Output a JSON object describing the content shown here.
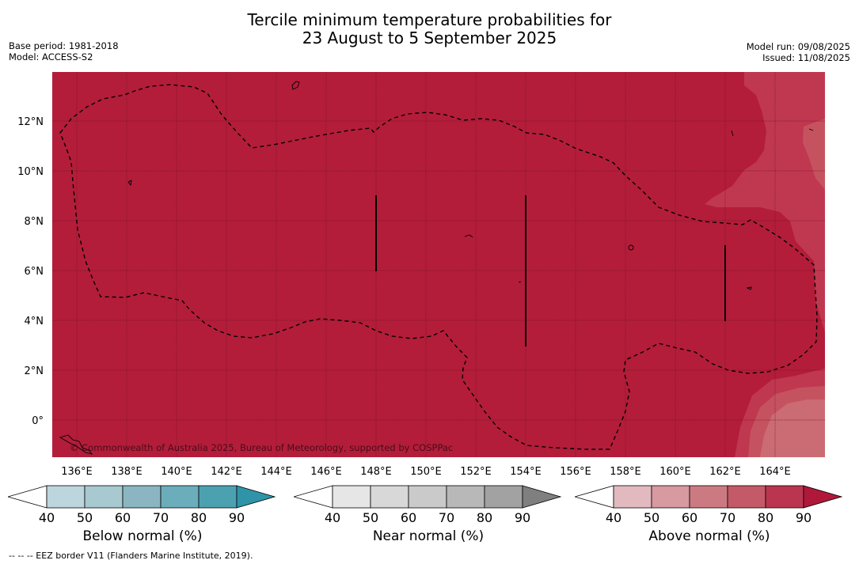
{
  "title": {
    "line1": "Tercile minimum temperature probabilities for",
    "line2": "23 August to 5 September 2025"
  },
  "meta_left": {
    "base_period": "Base period: 1981-2018",
    "model": "Model: ACCESS-S2"
  },
  "meta_right": {
    "model_run": "Model run: 09/08/2025",
    "issued": "Issued: 11/08/2025"
  },
  "map": {
    "lat_labels": [
      "12°N",
      "10°N",
      "8°N",
      "6°N",
      "4°N",
      "2°N",
      "0°"
    ],
    "lon_labels": [
      "136°E",
      "138°E",
      "140°E",
      "142°E",
      "144°E",
      "146°E",
      "148°E",
      "150°E",
      "152°E",
      "154°E",
      "156°E",
      "158°E",
      "160°E",
      "162°E",
      "164°E"
    ],
    "copyright": "© Commonwealth of Australia 2025, Bureau of Meteorology, supported by COSPPac",
    "colors": {
      "dominant": "#b31d3a",
      "above_80": "#bf3850",
      "above_70": "#c5535f",
      "above_60": "#cb6b73"
    }
  },
  "colorbars": [
    {
      "caption": "Below normal (%)",
      "ticks": [
        "40",
        "50",
        "60",
        "70",
        "80",
        "90"
      ],
      "colors": [
        "#ffffff",
        "#bdd5dc",
        "#a7c9cf",
        "#8bb6c1",
        "#6badbb",
        "#4ca1b1",
        "#2f94a8"
      ]
    },
    {
      "caption": "Near normal (%)",
      "ticks": [
        "40",
        "50",
        "60",
        "70",
        "80",
        "90"
      ],
      "colors": [
        "#ffffff",
        "#e6e6e6",
        "#d8d8d8",
        "#cacaca",
        "#b8b8b8",
        "#a2a2a2",
        "#7f7f7f"
      ]
    },
    {
      "caption": "Above normal (%)",
      "ticks": [
        "40",
        "50",
        "60",
        "70",
        "80",
        "90"
      ],
      "colors": [
        "#ffffff",
        "#e2b9bf",
        "#d69aa0",
        "#cc7a82",
        "#c45a67",
        "#bb3550",
        "#b0183a"
      ]
    }
  ],
  "footer": "--  --  -- EEZ border V11 (Flanders Marine Institute, 2019)."
}
